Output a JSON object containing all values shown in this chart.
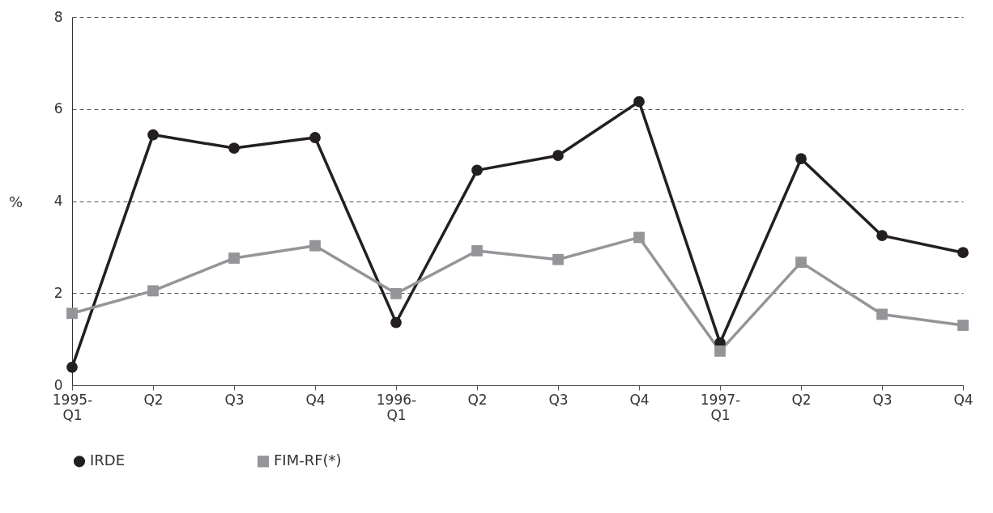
{
  "chart_data": {
    "type": "line",
    "ylabel": "%",
    "categories": [
      "1995-Q1",
      "Q2",
      "Q3",
      "Q4",
      "1996-Q1",
      "Q2",
      "Q3",
      "Q4",
      "1997-Q1",
      "Q2",
      "Q3",
      "Q4"
    ],
    "series": [
      {
        "name": "IRDE",
        "color": "#231f20",
        "marker": "circle",
        "values": [
          0.39,
          5.44,
          5.15,
          5.38,
          1.36,
          4.67,
          4.99,
          6.16,
          0.92,
          4.92,
          3.25,
          2.88
        ]
      },
      {
        "name": "FIM-RF(*)",
        "color": "#939598",
        "marker": "square",
        "values": [
          1.56,
          2.05,
          2.76,
          3.03,
          1.99,
          2.92,
          2.73,
          3.21,
          0.74,
          2.67,
          1.54,
          1.3
        ]
      }
    ],
    "ylim": [
      0,
      8
    ],
    "yticks": [
      0,
      2,
      4,
      6,
      8
    ],
    "grid": "y",
    "legend": "bottom",
    "line_style": "solid"
  }
}
